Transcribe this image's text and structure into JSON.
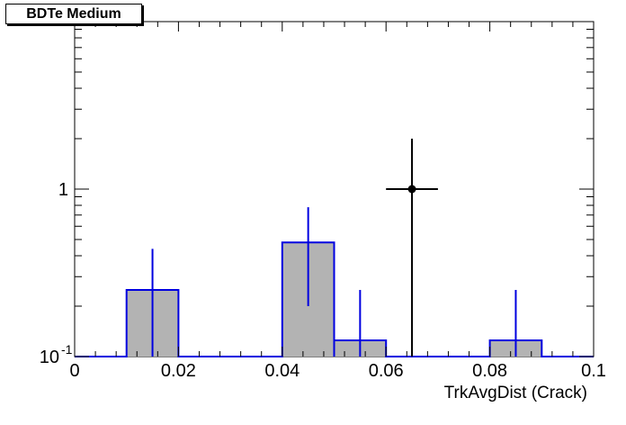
{
  "title": "BDTe Medium",
  "chart_data": {
    "type": "histogram",
    "xlabel": "TrkAvgDist (Crack)",
    "ylabel": "",
    "xlim": [
      0,
      0.1
    ],
    "ylim": [
      0.1,
      10
    ],
    "y_scale": "log",
    "x_tick_labels": [
      "0",
      "0.02",
      "0.04",
      "0.06",
      "0.08",
      "0.1"
    ],
    "y_tick_labels": [
      {
        "value": 0.1,
        "base": "10",
        "exp": "-1"
      },
      {
        "value": 1,
        "base": "1",
        "exp": ""
      }
    ],
    "grid": false,
    "series": [
      {
        "kind": "filled-histogram",
        "bin_width": 0.01,
        "bins": [
          {
            "low": 0.01,
            "value": 0.25,
            "err_low": 0.1,
            "err_high": 0.44
          },
          {
            "low": 0.04,
            "value": 0.48,
            "err_low": 0.2,
            "err_high": 0.78
          },
          {
            "low": 0.05,
            "value": 0.125,
            "err_low": 0.1,
            "err_high": 0.25
          },
          {
            "low": 0.08,
            "value": 0.125,
            "err_low": 0.1,
            "err_high": 0.25
          }
        ],
        "fill": "#b3b3b3",
        "line": "#0000e0"
      },
      {
        "kind": "points",
        "points": [
          {
            "x": 0.065,
            "y": 1.0,
            "x_err": 0.005,
            "y_low": 0.1,
            "y_high": 2.0
          }
        ],
        "color": "#000000"
      }
    ]
  }
}
